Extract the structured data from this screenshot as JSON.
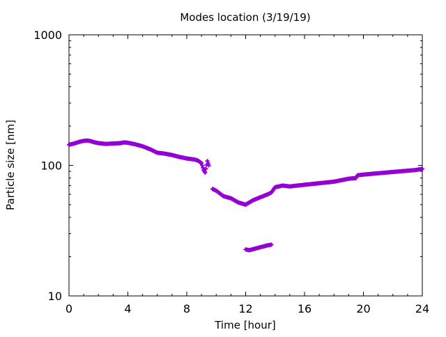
{
  "chart_data": {
    "type": "scatter",
    "title": "Modes location (3/19/19)",
    "xlabel": "Time [hour]",
    "ylabel": "Particle size [nm]",
    "xlim": [
      0,
      24
    ],
    "ylim": [
      10,
      1000
    ],
    "yscale": "log",
    "grid": false,
    "legend": "none",
    "x_ticks": [
      0,
      4,
      8,
      12,
      16,
      20,
      24
    ],
    "x_tick_labels": [
      "0",
      "4",
      "8",
      "12",
      "16",
      "20",
      "24"
    ],
    "y_ticks": [
      10,
      100,
      1000
    ],
    "y_tick_labels": [
      "10",
      "100",
      "1000"
    ],
    "colors": {
      "series": "#9400d3",
      "axis": "#000000",
      "background": "#ffffff"
    },
    "series": [
      {
        "x": [
          0.0,
          0.25,
          0.5,
          0.75,
          1.0,
          1.25,
          1.5,
          1.75,
          2.0,
          2.5,
          3.0,
          3.5,
          3.75,
          4.0,
          4.5,
          5.0,
          5.5,
          6.0,
          6.5,
          7.0,
          7.5,
          8.0,
          8.5,
          8.75,
          9.0,
          9.15,
          9.25,
          9.4,
          9.5,
          9.75,
          10.0,
          10.5,
          11.0,
          11.5,
          12.0,
          12.25,
          12.5,
          13.0,
          13.5,
          13.75,
          14.0,
          14.5,
          15.0,
          15.5,
          16.0,
          16.5,
          17.0,
          17.5,
          18.0,
          18.5,
          19.0,
          19.5,
          19.6,
          20.0,
          20.5,
          21.0,
          21.5,
          22.0,
          22.5,
          23.0,
          23.5,
          24.0
        ],
        "y": [
          144,
          146,
          149,
          152,
          154,
          155,
          153,
          150,
          148,
          146,
          147,
          148,
          150,
          149,
          145,
          140,
          133,
          125,
          123,
          120,
          116,
          113,
          111,
          109,
          104,
          92,
          88,
          108,
          100,
          66,
          64,
          58,
          56,
          52,
          50,
          52,
          54,
          57,
          60,
          62,
          68,
          70,
          69,
          70,
          71,
          72,
          73,
          74,
          75,
          77,
          79,
          80,
          84,
          85,
          86,
          87,
          88,
          89,
          90,
          91,
          92,
          94
        ]
      },
      {
        "x": [
          12.0,
          12.25,
          12.5,
          12.75,
          13.0,
          13.25,
          13.5,
          13.75
        ],
        "y": [
          22.7,
          22.4,
          22.8,
          23.2,
          23.6,
          24.0,
          24.4,
          24.7
        ]
      }
    ]
  }
}
